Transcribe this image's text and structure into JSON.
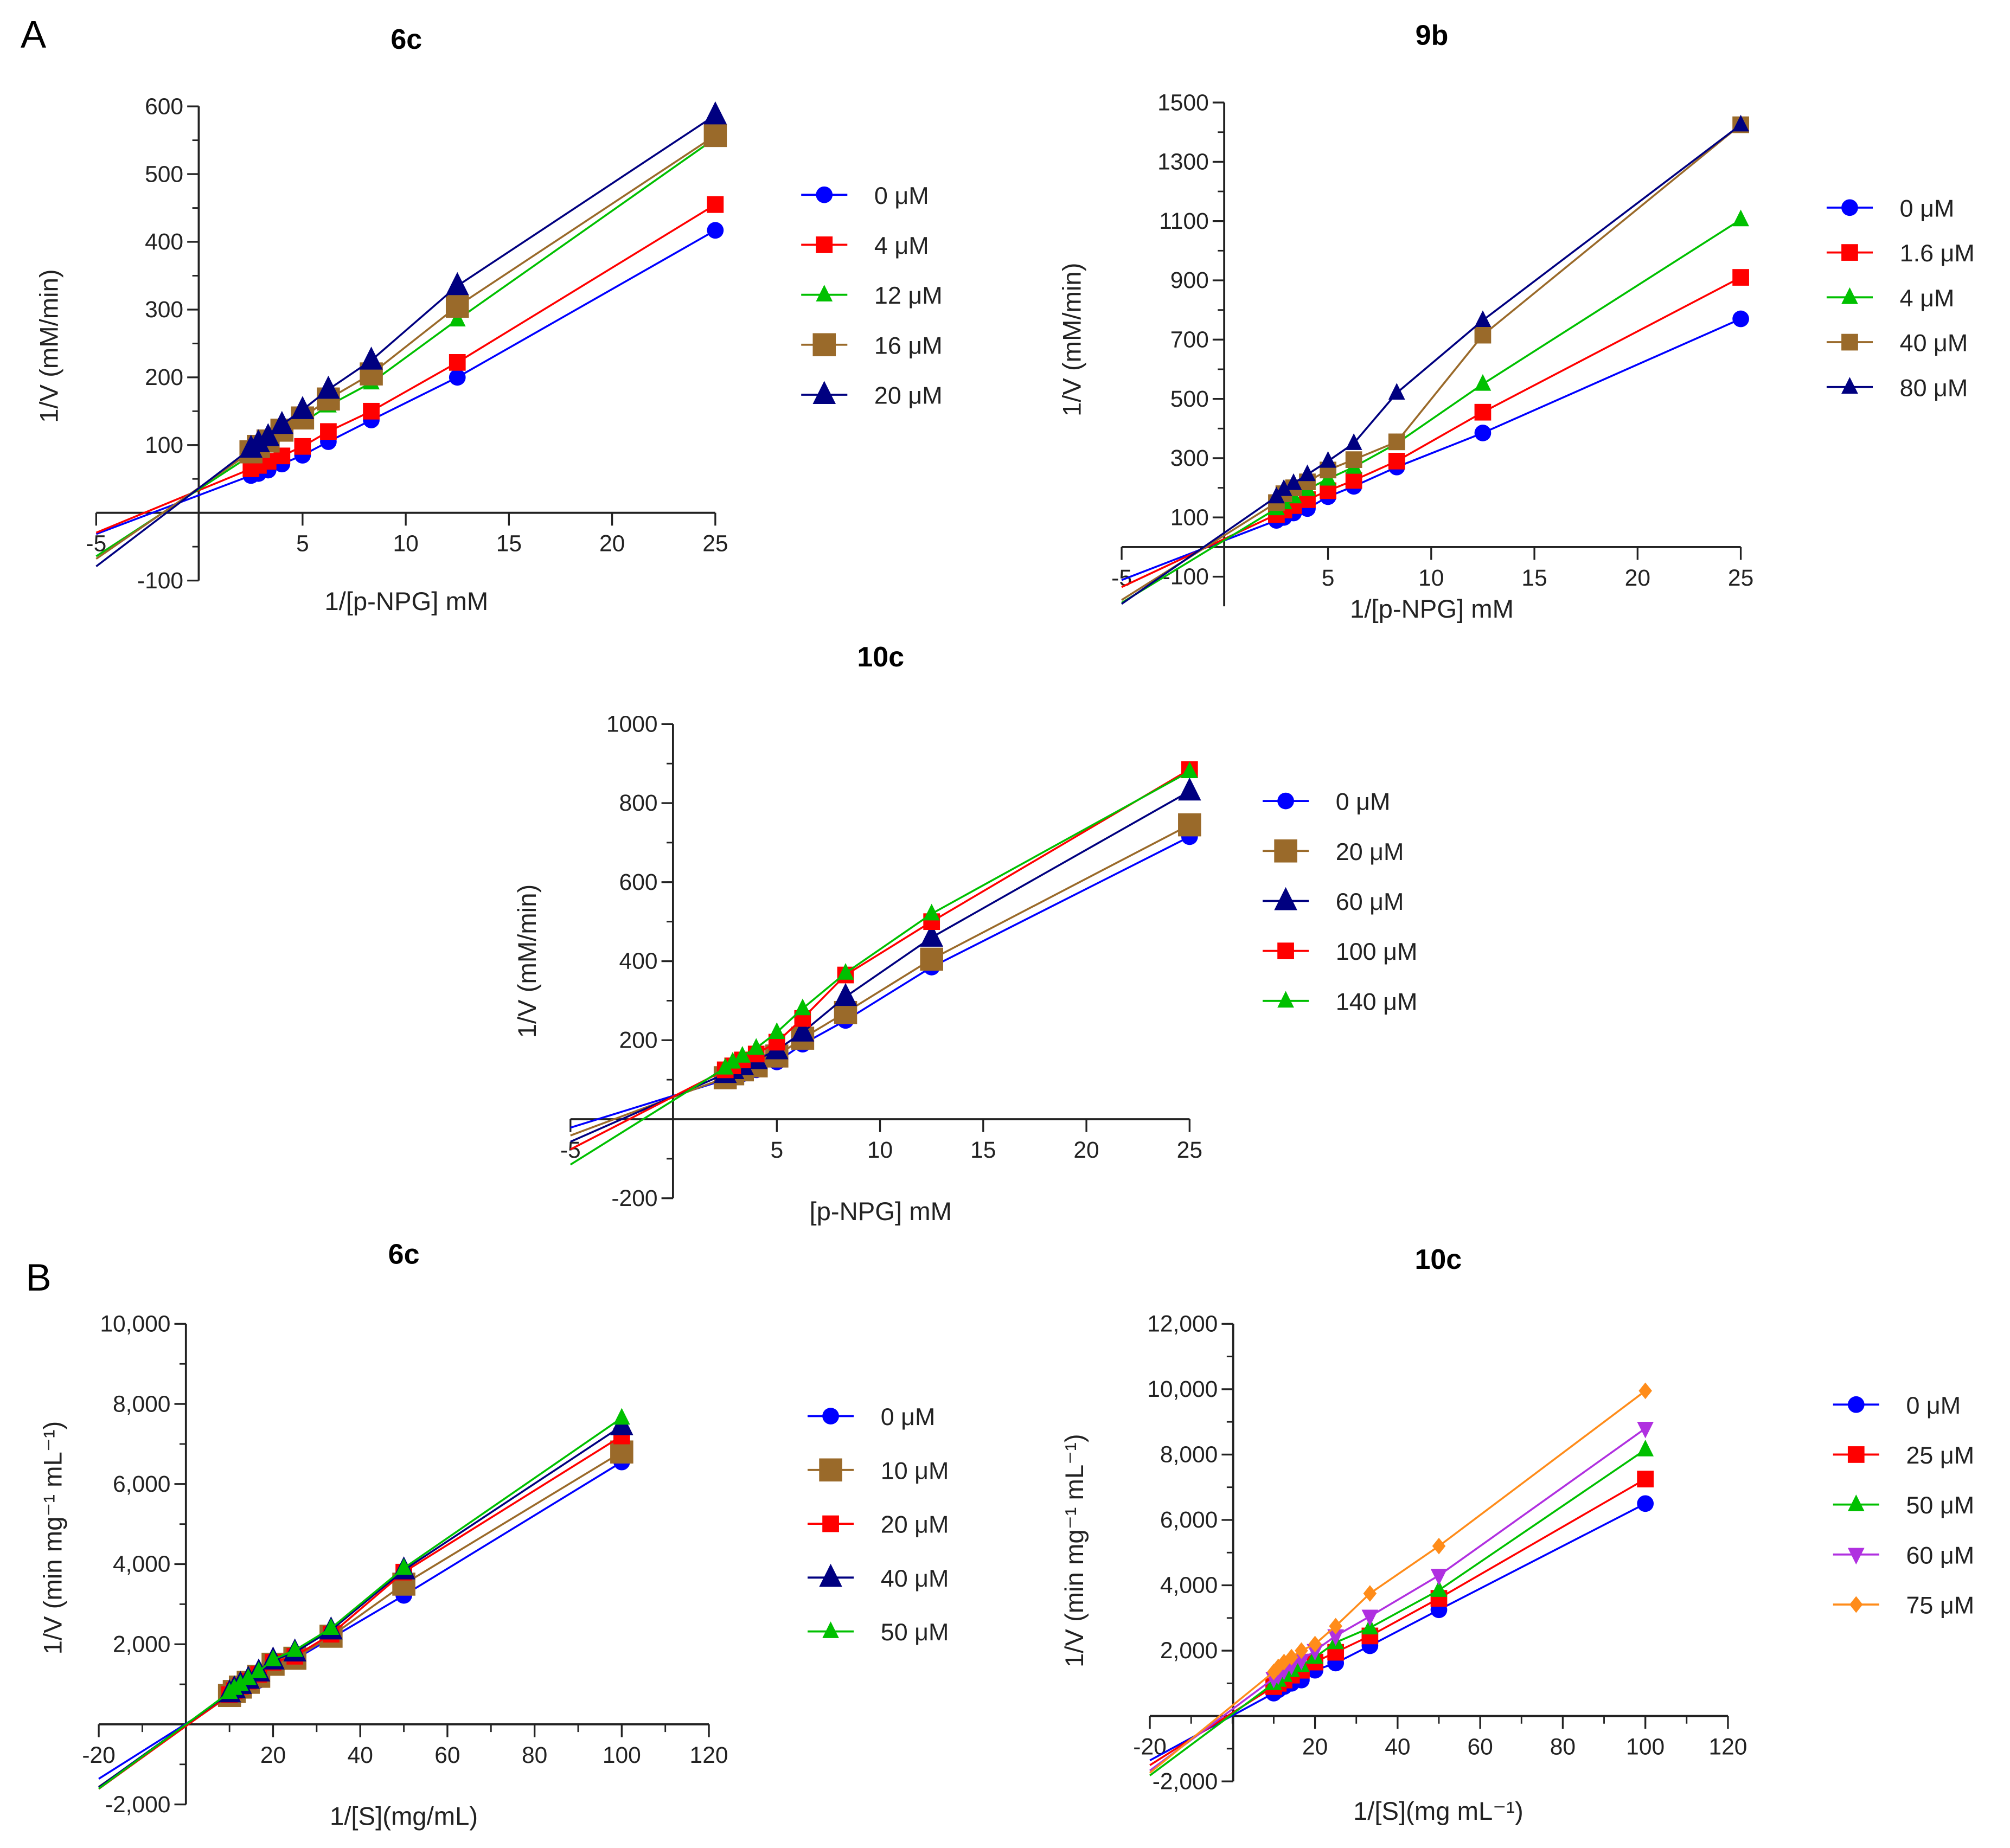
{
  "panels": [
    "A",
    "B"
  ],
  "chart_data": [
    {
      "type": "line",
      "panel": "A",
      "title": "6c",
      "xlabel": "1/[p-NPG] mM",
      "ylabel": "1/V (mM/min)",
      "xlim": [
        -5,
        25
      ],
      "ylim": [
        -100,
        600
      ],
      "xticks": [
        -5,
        5,
        10,
        15,
        20,
        25
      ],
      "yticks": [
        -100,
        100,
        200,
        300,
        400,
        500,
        600
      ],
      "yminor": 50,
      "x": [
        2.5,
        2.86,
        3.33,
        4,
        5,
        6.25,
        8.33,
        12.5,
        25
      ],
      "series": [
        {
          "name": "0 μM",
          "color": "#0000ff",
          "marker": "circle",
          "values": [
            55,
            58,
            63,
            72,
            85,
            105,
            137,
            200,
            417
          ]
        },
        {
          "name": "4 μM",
          "color": "#ff0000",
          "marker": "square",
          "values": [
            65,
            70,
            76,
            84,
            98,
            120,
            150,
            222,
            455
          ]
        },
        {
          "name": "12 μM",
          "color": "#00c000",
          "marker": "triangle",
          "values": [
            85,
            92,
            100,
            115,
            133,
            158,
            192,
            285,
            553
          ]
        },
        {
          "name": "16 μM",
          "color": "#9a6a2a",
          "marker": "square-lg",
          "values": [
            90,
            98,
            106,
            122,
            140,
            168,
            205,
            305,
            557
          ]
        },
        {
          "name": "20 μM",
          "color": "#000080",
          "marker": "triangle-lg",
          "values": [
            95,
            103,
            112,
            130,
            152,
            182,
            225,
            335,
            587
          ]
        }
      ]
    },
    {
      "type": "line",
      "panel": "A",
      "title": "9b",
      "xlabel": "1/[p-NPG] mM",
      "ylabel": "1/V (mM/min)",
      "xlim": [
        -5,
        25
      ],
      "ylim": [
        -200,
        1500
      ],
      "xticks": [
        -5,
        5,
        10,
        15,
        20,
        25
      ],
      "yticks": [
        -100,
        100,
        300,
        500,
        700,
        900,
        1100,
        1300,
        1500
      ],
      "yminor": 100,
      "x": [
        2.5,
        2.86,
        3.33,
        4,
        5,
        6.25,
        8.33,
        12.5,
        25
      ],
      "series": [
        {
          "name": "0 μM",
          "color": "#0000ff",
          "marker": "circle",
          "values": [
            90,
            100,
            115,
            130,
            170,
            205,
            270,
            385,
            770
          ]
        },
        {
          "name": "1.6 μM",
          "color": "#ff0000",
          "marker": "square",
          "values": [
            110,
            125,
            140,
            160,
            190,
            225,
            290,
            455,
            910
          ]
        },
        {
          "name": "4 μM",
          "color": "#00c000",
          "marker": "triangle",
          "values": [
            130,
            150,
            170,
            195,
            230,
            270,
            350,
            550,
            1105
          ]
        },
        {
          "name": "40 μM",
          "color": "#9a6a2a",
          "marker": "square",
          "values": [
            150,
            180,
            200,
            220,
            260,
            295,
            355,
            715,
            1425
          ]
        },
        {
          "name": "80 μM",
          "color": "#000080",
          "marker": "triangle",
          "values": [
            170,
            195,
            215,
            245,
            290,
            350,
            520,
            765,
            1425
          ]
        }
      ]
    },
    {
      "type": "line",
      "panel": "A",
      "title": "10c",
      "xlabel": "[p-NPG] mM",
      "ylabel": "1/V (mM/min)",
      "xlim": [
        -5,
        25
      ],
      "ylim": [
        -200,
        1000
      ],
      "xticks": [
        -5,
        5,
        10,
        15,
        20,
        25
      ],
      "yticks": [
        -200,
        200,
        400,
        600,
        800,
        1000
      ],
      "yminor": 100,
      "x": [
        2.5,
        2.86,
        3.33,
        4,
        5,
        6.25,
        8.33,
        12.5,
        25
      ],
      "series": [
        {
          "name": "0 μM",
          "color": "#0000ff",
          "marker": "circle",
          "values": [
            100,
            108,
            115,
            125,
            145,
            190,
            250,
            385,
            715
          ]
        },
        {
          "name": "20 μM",
          "color": "#9a6a2a",
          "marker": "square-lg",
          "values": [
            105,
            115,
            125,
            135,
            160,
            205,
            270,
            405,
            745
          ]
        },
        {
          "name": "60 μM",
          "color": "#000080",
          "marker": "triangle-lg",
          "values": [
            115,
            125,
            135,
            150,
            175,
            220,
            310,
            460,
            830
          ]
        },
        {
          "name": "100 μM",
          "color": "#ff0000",
          "marker": "square",
          "values": [
            125,
            135,
            150,
            165,
            195,
            255,
            365,
            500,
            885
          ]
        },
        {
          "name": "140 μM",
          "color": "#00c000",
          "marker": "triangle",
          "values": [
            130,
            145,
            160,
            180,
            220,
            280,
            370,
            520,
            880
          ]
        }
      ]
    },
    {
      "type": "line",
      "panel": "B",
      "title": "6c",
      "xlabel": "1/[S](mg/mL)",
      "ylabel": "1/V (min mg⁻¹ mL⁻¹)",
      "xlim": [
        -20,
        120
      ],
      "ylim": [
        -2000,
        10000
      ],
      "xticks": [
        -20,
        20,
        40,
        60,
        80,
        100,
        120
      ],
      "xminor": 10,
      "yticks": [
        -2000,
        2000,
        4000,
        6000,
        8000,
        10000
      ],
      "yminor": 1000,
      "x": [
        10,
        11.1,
        12.5,
        14.3,
        16.7,
        20,
        25,
        33.3,
        50,
        100
      ],
      "series": [
        {
          "name": "0 μM",
          "color": "#0000ff",
          "marker": "circle",
          "values": [
            700,
            800,
            900,
            1000,
            1100,
            1450,
            1620,
            2150,
            3220,
            6550
          ]
        },
        {
          "name": "10 μM",
          "color": "#9a6a2a",
          "marker": "square-lg",
          "values": [
            720,
            820,
            930,
            1050,
            1200,
            1500,
            1650,
            2200,
            3500,
            6800
          ]
        },
        {
          "name": "20 μM",
          "color": "#ff0000",
          "marker": "square",
          "values": [
            740,
            840,
            950,
            1080,
            1250,
            1550,
            1700,
            2250,
            3800,
            7200
          ]
        },
        {
          "name": "40 μM",
          "color": "#000080",
          "marker": "triangle-lg",
          "values": [
            780,
            880,
            990,
            1120,
            1300,
            1600,
            1800,
            2350,
            3850,
            7450
          ]
        },
        {
          "name": "50 μM",
          "color": "#00c000",
          "marker": "triangle",
          "values": [
            800,
            900,
            1000,
            1150,
            1320,
            1620,
            1850,
            2400,
            3900,
            7650
          ]
        }
      ]
    },
    {
      "type": "line",
      "panel": "B",
      "title": "10c",
      "xlabel": "1/[S](mg mL⁻¹)",
      "ylabel": "1/V (min mg⁻¹ mL⁻¹)",
      "xlim": [
        -20,
        120
      ],
      "ylim": [
        -2000,
        12000
      ],
      "xticks": [
        -20,
        20,
        40,
        60,
        80,
        100,
        120
      ],
      "xminor": 10,
      "yticks": [
        -2000,
        2000,
        4000,
        6000,
        8000,
        10000,
        12000
      ],
      "yminor": 1000,
      "x": [
        10,
        11.1,
        12.5,
        14.3,
        16.7,
        20,
        25,
        33.3,
        50,
        100
      ],
      "series": [
        {
          "name": "0 μM",
          "color": "#0000ff",
          "marker": "circle",
          "values": [
            700,
            800,
            900,
            1000,
            1100,
            1400,
            1620,
            2150,
            3250,
            6500
          ]
        },
        {
          "name": "25 μM",
          "color": "#ff0000",
          "marker": "square",
          "values": [
            900,
            1000,
            1100,
            1250,
            1400,
            1650,
            1950,
            2450,
            3600,
            7250
          ]
        },
        {
          "name": "50 μM",
          "color": "#00c000",
          "marker": "triangle",
          "values": [
            1000,
            1100,
            1250,
            1400,
            1550,
            1800,
            2250,
            2700,
            3850,
            8150
          ]
        },
        {
          "name": "60 μM",
          "color": "#b030e0",
          "marker": "triangle-down",
          "values": [
            1150,
            1250,
            1400,
            1550,
            1700,
            2000,
            2450,
            3050,
            4300,
            8800
          ]
        },
        {
          "name": "75 μM",
          "color": "#ff8c1a",
          "marker": "diamond",
          "values": [
            1350,
            1500,
            1650,
            1800,
            2000,
            2200,
            2750,
            3750,
            5200,
            9950
          ]
        }
      ]
    }
  ]
}
